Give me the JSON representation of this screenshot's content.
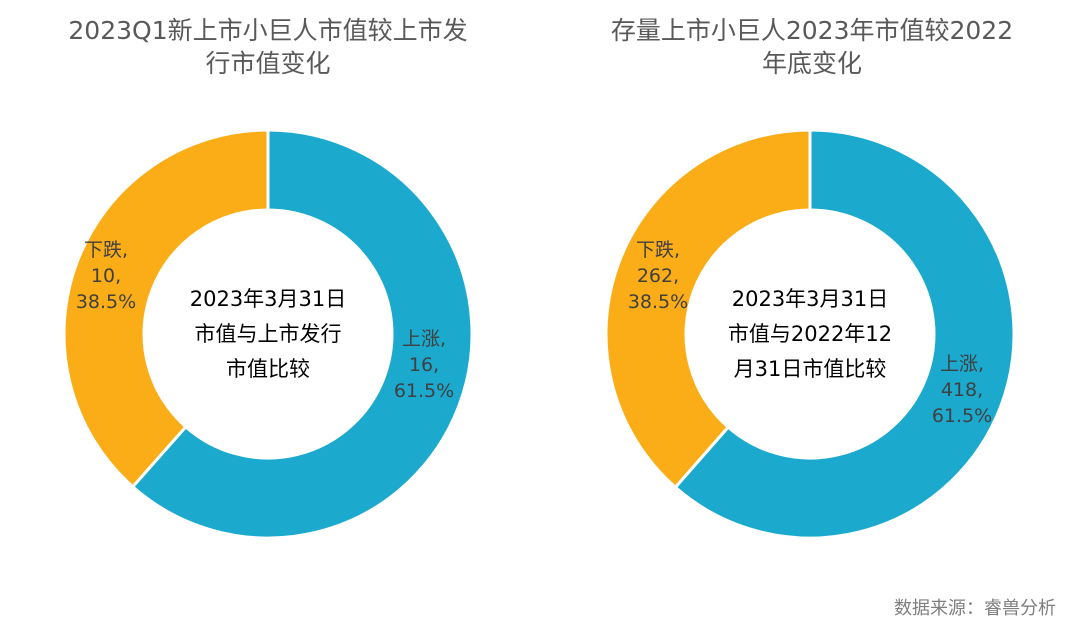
{
  "colors": {
    "up": "#1ba9ce",
    "down": "#fbad18",
    "separator": "#ffffff"
  },
  "chart_data": [
    {
      "type": "pie",
      "style": "donut",
      "title": "2023Q1新上市小巨人市值较上市发行市值变化",
      "title_lines": [
        "2023Q1新上市小巨人市值较上市发",
        "行市值变化"
      ],
      "center_text": [
        "2023年3月31日",
        "市值与上市发行",
        "市值比较"
      ],
      "slices": [
        {
          "name": "上涨",
          "value": 16,
          "percent": "61.5%",
          "color": "#1ba9ce",
          "label_lines": [
            "上涨,",
            "16,",
            "61.5%"
          ]
        },
        {
          "name": "下跌",
          "value": 10,
          "percent": "38.5%",
          "color": "#fbad18",
          "label_lines": [
            "下跌,",
            "10,",
            "38.5%"
          ]
        }
      ]
    },
    {
      "type": "pie",
      "style": "donut",
      "title": "存量上市小巨人2023年市值较2022年底变化",
      "title_lines": [
        "存量上市小巨人2023年市值较2022",
        "年底变化"
      ],
      "center_text": [
        "2023年3月31日",
        "市值与2022年12",
        "月31日市值比较"
      ],
      "slices": [
        {
          "name": "上涨",
          "value": 418,
          "percent": "61.5%",
          "color": "#1ba9ce",
          "label_lines": [
            "上涨,",
            "418,",
            "61.5%"
          ]
        },
        {
          "name": "下跌",
          "value": 262,
          "percent": "38.5%",
          "color": "#fbad18",
          "label_lines": [
            "下跌,",
            "262,",
            "38.5%"
          ]
        }
      ]
    }
  ],
  "source_note": "数据来源：睿兽分析"
}
